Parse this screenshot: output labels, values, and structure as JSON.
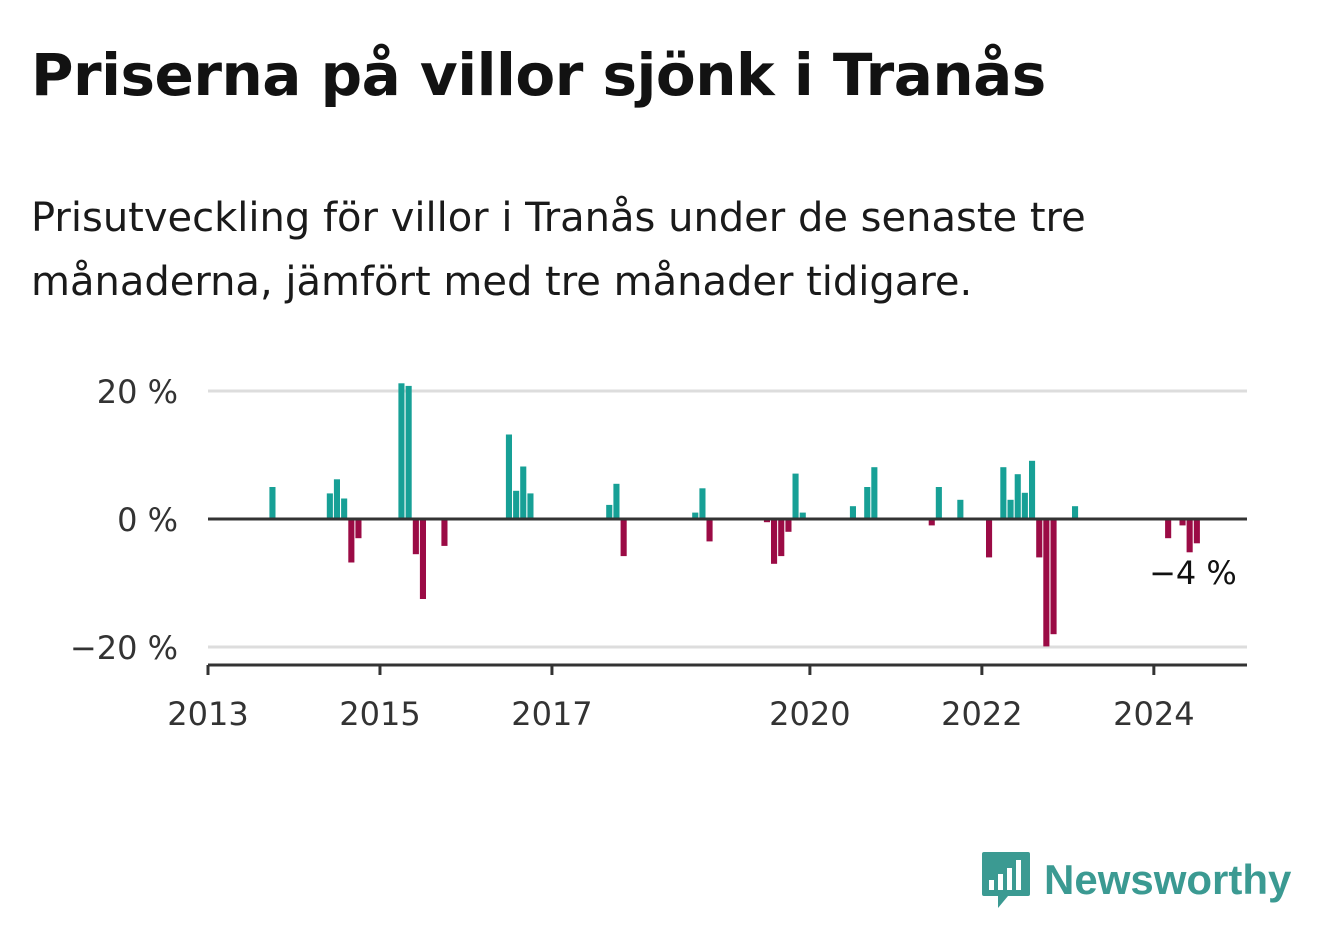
{
  "header": {
    "title": "Priserna på villor sjönk i Tranås",
    "subtitle": "Prisutveckling för villor i Tranås under de senaste tre månaderna, jämfört med tre månader tidigare."
  },
  "colors": {
    "positive": "#17a096",
    "negative": "#9b0b45",
    "gridline": "#dddddd",
    "axis": "#333333",
    "brand": "#3b9a92"
  },
  "chart_data": {
    "type": "bar",
    "title": "Priserna på villor sjönk i Tranås",
    "subtitle": "Prisutveckling för villor i Tranås under de senaste tre månaderna, jämfört med tre månader tidigare.",
    "xlabel": "",
    "ylabel": "",
    "ylim": [
      -22,
      22
    ],
    "xlim": [
      "2013-01",
      "2025-02"
    ],
    "y_ticks": [
      {
        "value": 20,
        "label": "20 %"
      },
      {
        "value": 0,
        "label": "0 %"
      },
      {
        "value": -20,
        "label": "−20 %"
      }
    ],
    "x_ticks": [
      {
        "value": "2013-01",
        "label": "2013"
      },
      {
        "value": "2015-01",
        "label": "2015"
      },
      {
        "value": "2017-01",
        "label": "2017"
      },
      {
        "value": "2020-01",
        "label": "2020"
      },
      {
        "value": "2022-01",
        "label": "2022"
      },
      {
        "value": "2024-01",
        "label": "2024"
      }
    ],
    "grid": true,
    "series": [
      {
        "unit": "%",
        "x": [
          "2013-10",
          "2014-06",
          "2014-07",
          "2014-08",
          "2014-09",
          "2014-10",
          "2015-04",
          "2015-05",
          "2015-06",
          "2015-07",
          "2015-10",
          "2016-07",
          "2016-08",
          "2016-09",
          "2016-10",
          "2017-09",
          "2017-10",
          "2017-11",
          "2018-09",
          "2018-10",
          "2018-11",
          "2019-07",
          "2019-08",
          "2019-09",
          "2019-10",
          "2019-11",
          "2019-12",
          "2020-07",
          "2020-09",
          "2020-10",
          "2021-06",
          "2021-07",
          "2021-10",
          "2022-02",
          "2022-04",
          "2022-05",
          "2022-06",
          "2022-07",
          "2022-08",
          "2022-09",
          "2022-10",
          "2022-11",
          "2023-02",
          "2024-03",
          "2024-05",
          "2024-06",
          "2024-07"
        ],
        "values": [
          5,
          4,
          6.2,
          3.2,
          -6.8,
          -3,
          21.2,
          20.8,
          -5.5,
          -12.5,
          -4.2,
          13.2,
          4.4,
          8.2,
          4,
          2.2,
          5.5,
          -5.8,
          1,
          4.8,
          -3.5,
          -0.5,
          -7,
          -5.8,
          -2,
          7.1,
          1,
          2,
          5,
          8.1,
          -1,
          5,
          3,
          -6,
          8.1,
          3,
          7,
          4.1,
          9.1,
          -6,
          -19.9,
          -18,
          2,
          -3,
          -1,
          -5.2,
          -3.8
        ]
      }
    ],
    "annotations": [
      {
        "x": "2024-07",
        "y": -4,
        "text": "−4 %"
      }
    ]
  },
  "branding": {
    "logo_icon": "chart-bubble-icon",
    "name": "Newsworthy"
  }
}
